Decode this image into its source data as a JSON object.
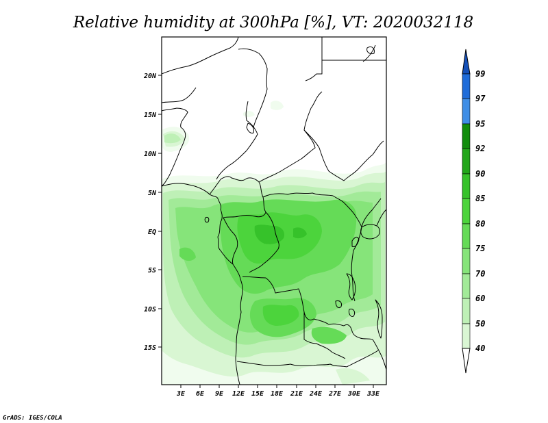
{
  "title": "Relative humidity at 300hPa [%], VT: 2020032118",
  "credit": "GrADS: IGES/COLA",
  "map": {
    "lon_range": [
      0,
      35
    ],
    "lat_range": [
      -20,
      25
    ],
    "lat_ticks": [
      "20N",
      "15N",
      "10N",
      "5N",
      "EQ",
      "5S",
      "10S",
      "15S"
    ],
    "lon_ticks": [
      "3E",
      "6E",
      "9E",
      "12E",
      "15E",
      "18E",
      "21E",
      "24E",
      "27E",
      "30E",
      "33E"
    ]
  },
  "colorbar": {
    "levels": [
      "99",
      "97",
      "95",
      "92",
      "90",
      "85",
      "80",
      "75",
      "70",
      "60",
      "50",
      "40"
    ],
    "colors": {
      "c40": "#f0fcee",
      "c50": "#d9f6d3",
      "c60": "#bef0b6",
      "c70": "#a2ea98",
      "c75": "#86e47a",
      "c80": "#65db57",
      "c85": "#4cd43c",
      "c90": "#36c22a",
      "c92": "#22a61a",
      "c95": "#118d0c",
      "c97": "#3f8ee6",
      "c99": "#1f6cd9",
      "ctop": "#1550b8"
    }
  }
}
